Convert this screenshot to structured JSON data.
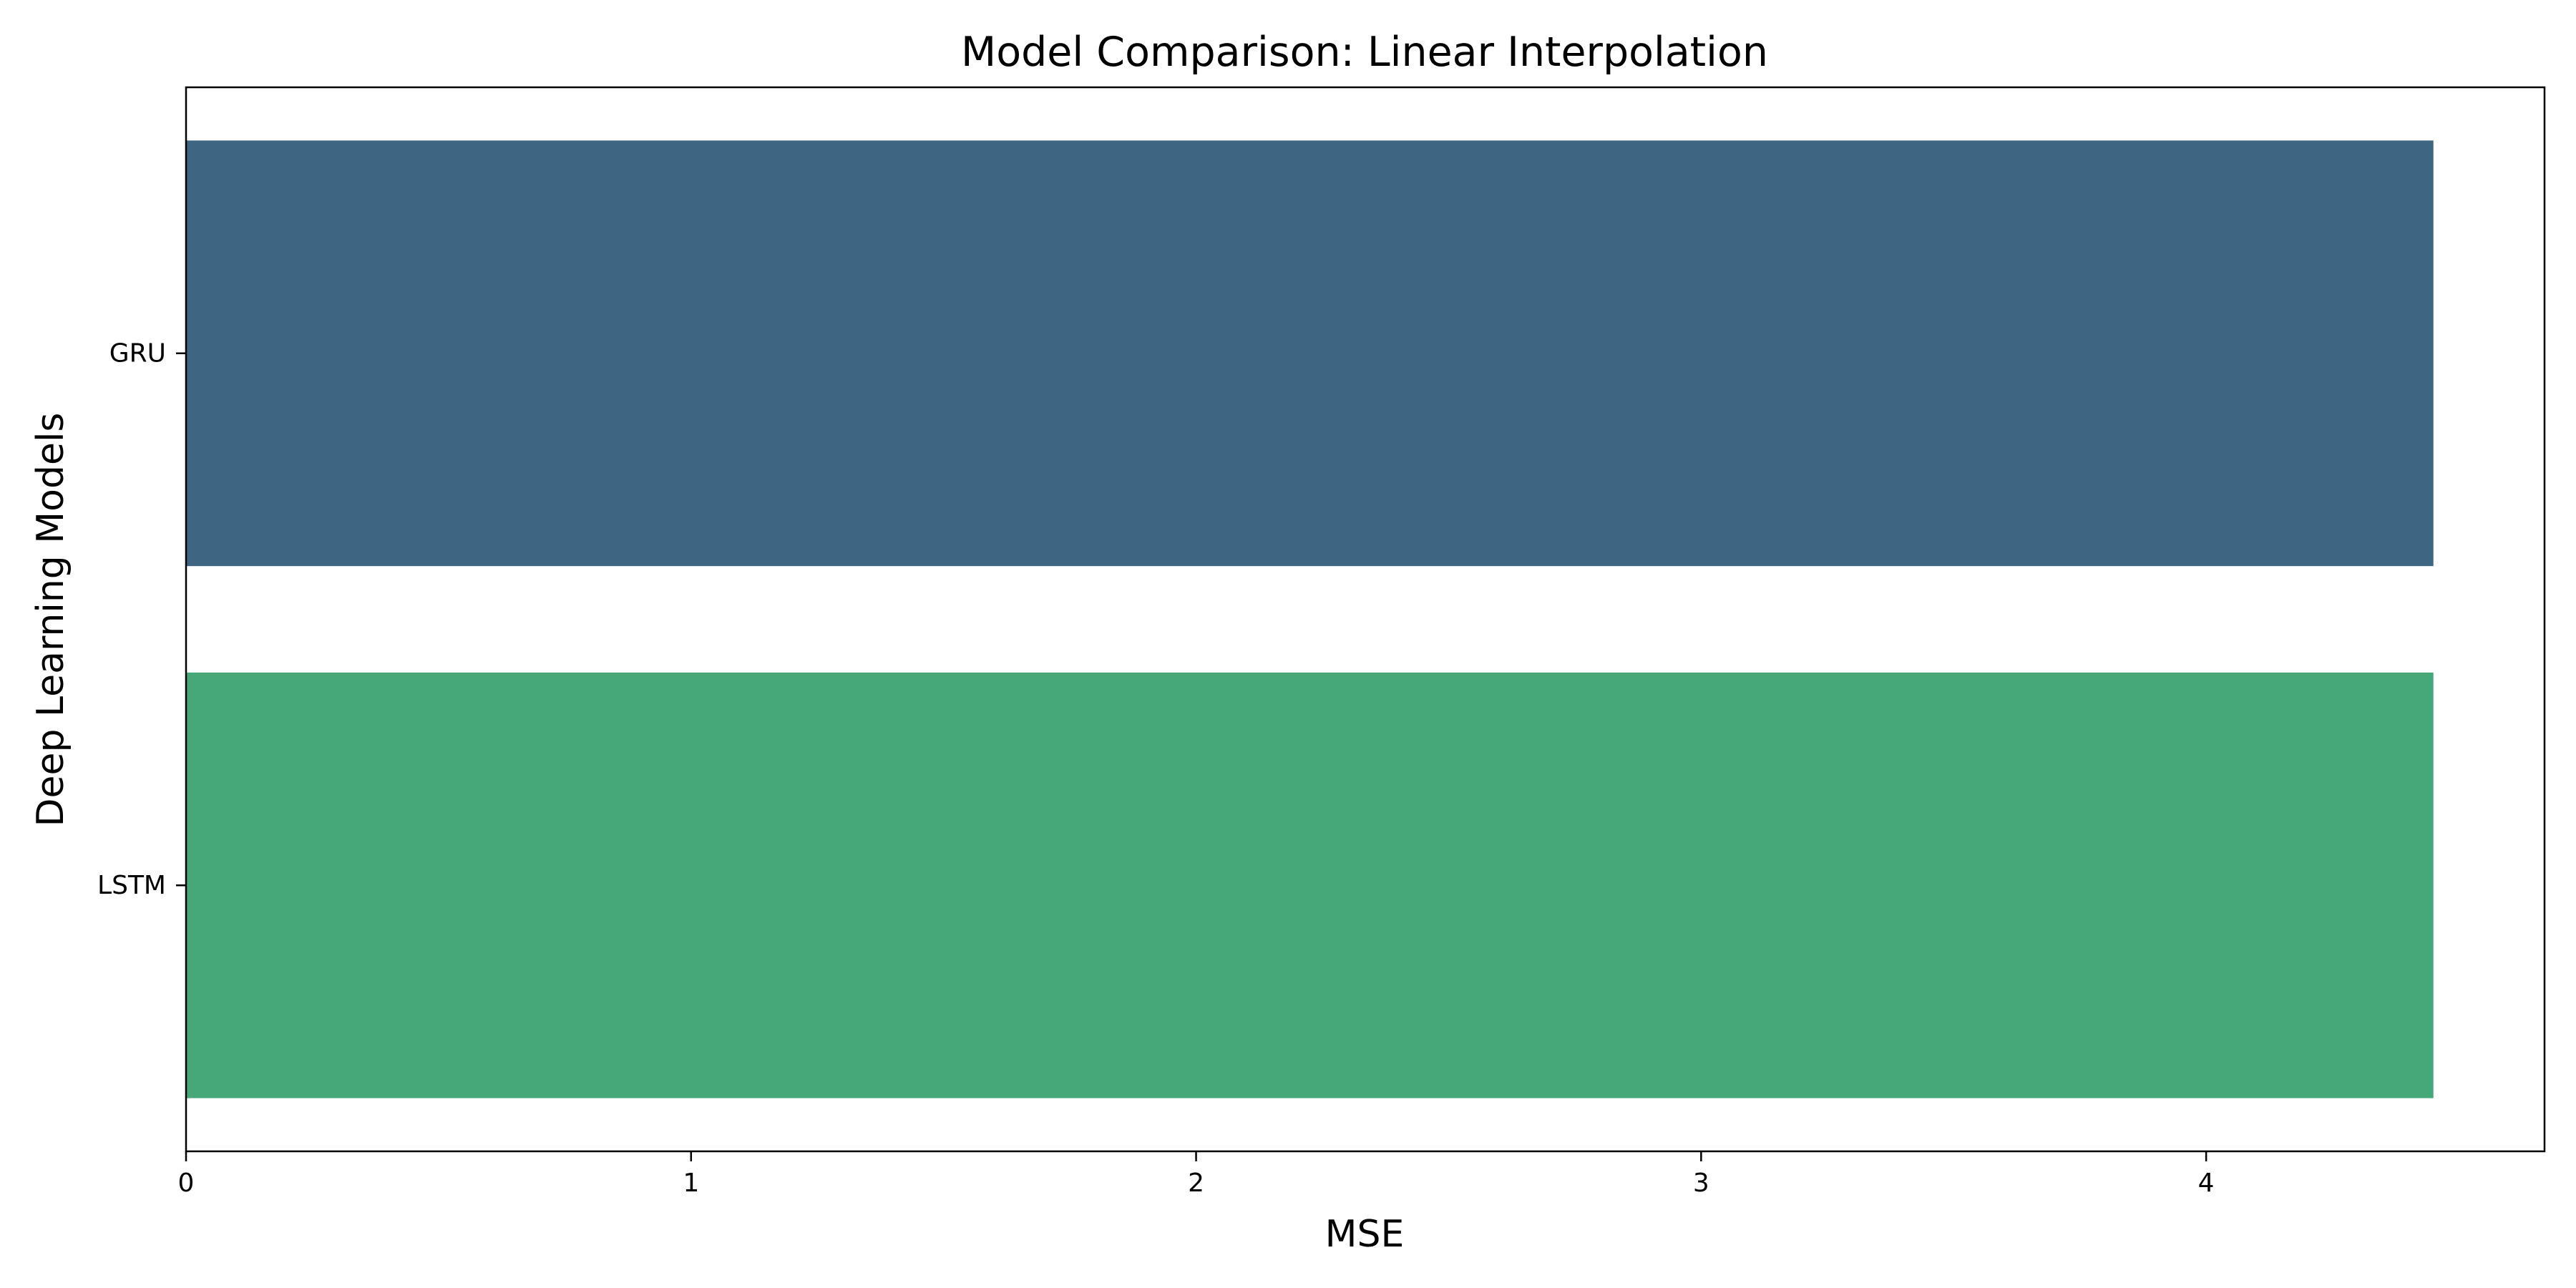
{
  "chart_data": {
    "type": "bar",
    "orientation": "horizontal",
    "title": "Model Comparison: Linear Interpolation",
    "xlabel": "MSE",
    "ylabel": "Deep Learning Models",
    "categories": [
      "GRU",
      "LSTM"
    ],
    "values": [
      4.45,
      4.45
    ],
    "colors": [
      "#3e6682",
      "#46a879"
    ],
    "xlim": [
      0,
      4.67
    ],
    "xticks": [
      0,
      1,
      2,
      3,
      4
    ],
    "grid": false,
    "legend": "none"
  }
}
